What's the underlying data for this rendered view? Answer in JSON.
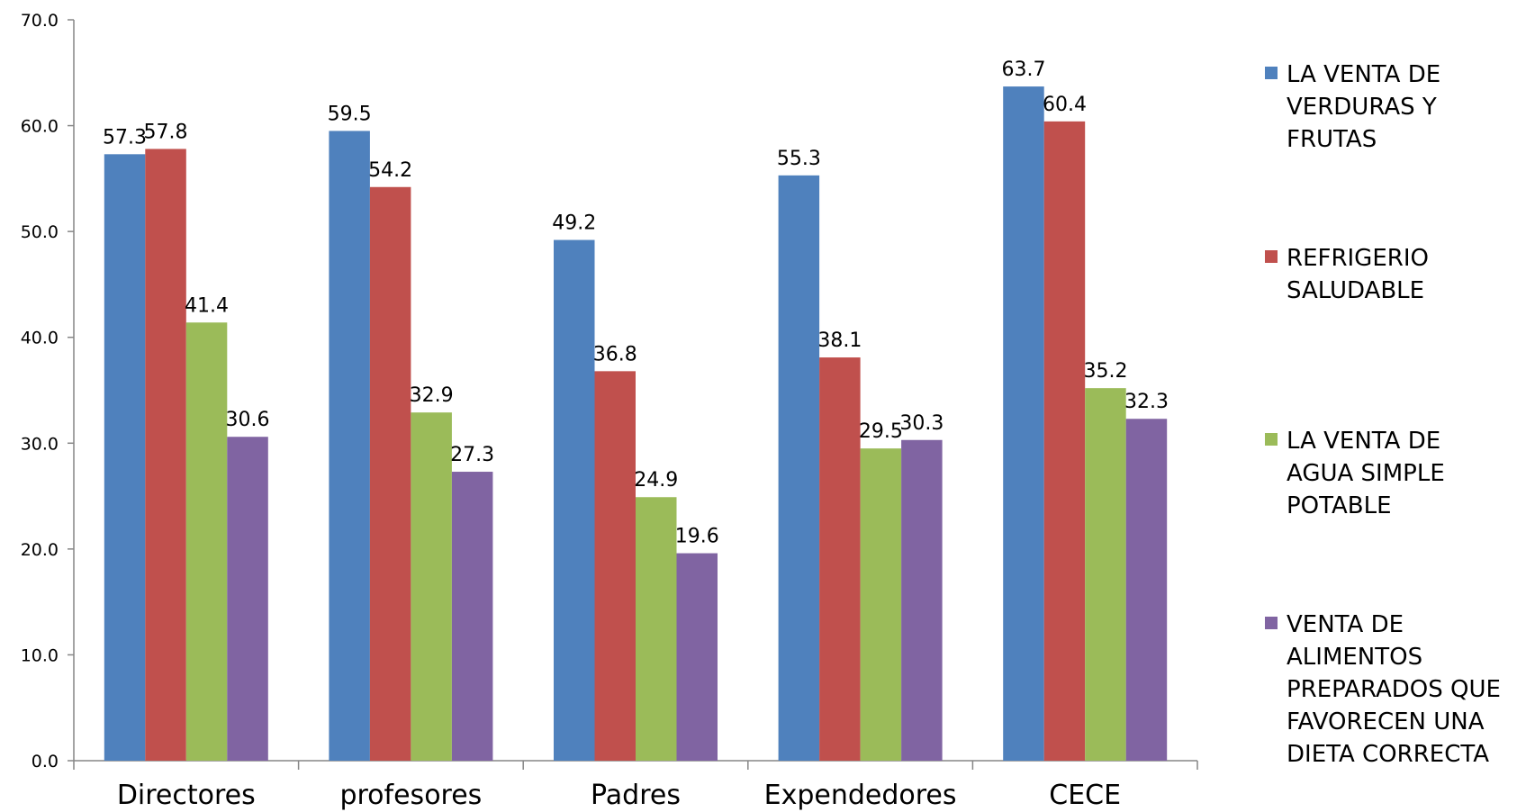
{
  "chart_data": {
    "type": "bar",
    "categories": [
      "Directores",
      "profesores",
      "Padres",
      "Expendedores",
      "CECE"
    ],
    "series": [
      {
        "name": "LA VENTA DE VERDURAS Y FRUTAS",
        "name_lines": [
          "LA VENTA DE",
          "VERDURAS Y",
          "FRUTAS"
        ],
        "color": "#4F81BD",
        "values": [
          57.3,
          59.5,
          49.2,
          55.3,
          63.7
        ],
        "labels": [
          "57.3",
          "59.5",
          "49.2",
          "55.3",
          "63.7"
        ]
      },
      {
        "name": "REFRIGERIO SALUDABLE",
        "name_lines": [
          "REFRIGERIO",
          "SALUDABLE"
        ],
        "color": "#C0504D",
        "values": [
          57.8,
          54.2,
          36.8,
          38.1,
          60.4
        ],
        "labels": [
          "57.8",
          "54.2",
          "36.8",
          "38.1",
          "60.4"
        ]
      },
      {
        "name": "LA VENTA DE AGUA SIMPLE POTABLE",
        "name_lines": [
          "LA VENTA DE",
          "AGUA SIMPLE",
          "POTABLE"
        ],
        "color": "#9BBB59",
        "values": [
          41.4,
          32.9,
          24.9,
          29.5,
          35.2
        ],
        "labels": [
          "41.4",
          "32.9",
          "24.9",
          "29.5",
          "35.2"
        ]
      },
      {
        "name": "VENTA DE ALIMENTOS PREPARADOS QUE FAVORECEN UNA DIETA CORRECTA",
        "name_lines": [
          "VENTA DE",
          "ALIMENTOS",
          "PREPARADOS QUE",
          "FAVORECEN UNA",
          "DIETA CORRECTA"
        ],
        "color": "#8064A2",
        "values": [
          30.6,
          27.3,
          19.6,
          30.3,
          32.3
        ],
        "labels": [
          "30.6",
          "27.3",
          "19.6",
          "30.3",
          "32.3"
        ]
      }
    ],
    "ylim": [
      0,
      70
    ],
    "yticks": [
      "0.0",
      "10.0",
      "20.0",
      "30.0",
      "40.0",
      "50.0",
      "60.0",
      "70.0"
    ],
    "title": "",
    "xlabel": "",
    "ylabel": "",
    "grid": false,
    "legend": "right"
  }
}
